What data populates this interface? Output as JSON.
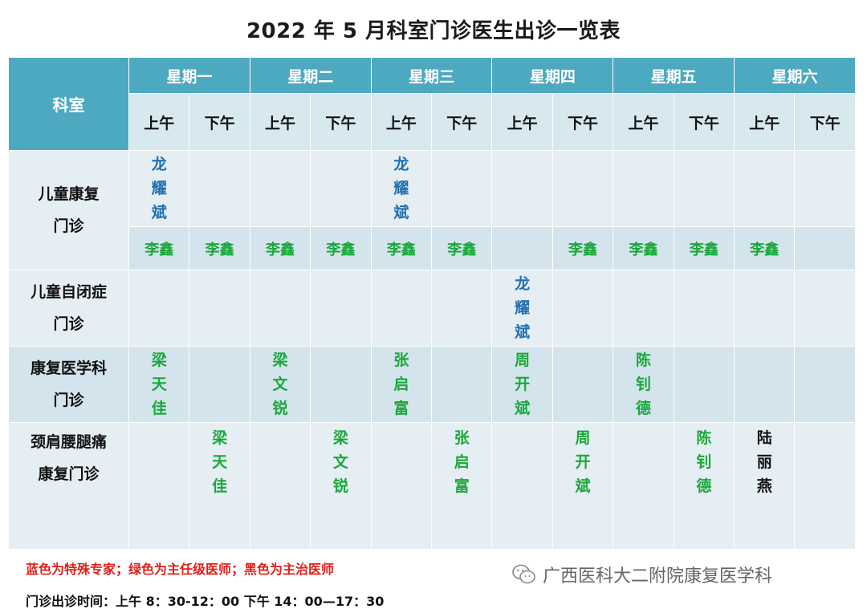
{
  "title": "2022 年 5 月科室门诊医生出诊一览表",
  "header": {
    "dept_label": "科室",
    "days": [
      "星期一",
      "星期二",
      "星期三",
      "星期四",
      "星期五",
      "星期六"
    ],
    "am": "上午",
    "pm": "下午"
  },
  "rows": {
    "child_rehab": {
      "label_line1": "儿童康复",
      "label_line2": "门诊",
      "blue_doctor": "龙耀斌",
      "green_doctor": "李鑫"
    },
    "autism": {
      "label_line1": "儿童自闭症",
      "label_line2": "门诊",
      "blue_doctor": "龙耀斌"
    },
    "rehab_med": {
      "label_line1": "康复医学科",
      "label_line2": "门诊",
      "doctors": [
        "梁天佳",
        "梁文锐",
        "张启富",
        "周开斌",
        "陈钊德"
      ]
    },
    "neck_back": {
      "label_line1": "颈肩腰腿痛",
      "label_line2": "康复门诊",
      "doctors": [
        "梁天佳",
        "梁文锐",
        "张启富",
        "周开斌",
        "陈钊德",
        "陆丽燕"
      ]
    }
  },
  "legend": "蓝色为特殊专家；绿色为主任级医师；黑色为主治医师",
  "hours": "门诊出诊时间：上午 8：30-12：00    下午 14：00—17：30",
  "brand": "广西医科大二附院康复医学科",
  "colors": {
    "header": "#4da9bf",
    "blue_expert": "#1f6fb2",
    "green_director": "#1aa83a",
    "black_attending": "#111111",
    "legend_red": "#e0201b"
  }
}
